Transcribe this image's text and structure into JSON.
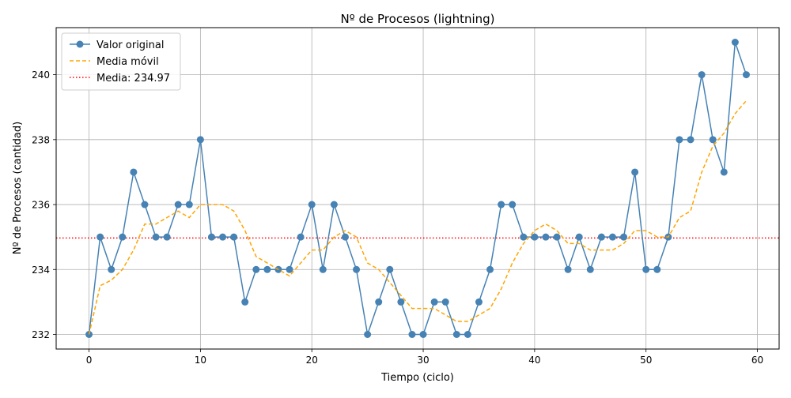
{
  "chart_data": {
    "type": "line",
    "title": "Nº de Procesos (lightning)",
    "xlabel": "Tiempo (ciclo)",
    "ylabel": "Nº de Procesos (cantidad)",
    "xlim": [
      -2.95,
      61.95
    ],
    "ylim": [
      231.55,
      241.45
    ],
    "xticks": [
      0,
      10,
      20,
      30,
      40,
      50,
      60
    ],
    "yticks": [
      232,
      234,
      236,
      238,
      240
    ],
    "grid": true,
    "legend_position": "top-left",
    "series": [
      {
        "name": "Valor original",
        "style": "line-markers",
        "color": "#4682b4",
        "x": [
          0,
          1,
          2,
          3,
          4,
          5,
          6,
          7,
          8,
          9,
          10,
          11,
          12,
          13,
          14,
          15,
          16,
          17,
          18,
          19,
          20,
          21,
          22,
          23,
          24,
          25,
          26,
          27,
          28,
          29,
          30,
          31,
          32,
          33,
          34,
          35,
          36,
          37,
          38,
          39,
          40,
          41,
          42,
          43,
          44,
          45,
          46,
          47,
          48,
          49,
          50,
          51,
          52,
          53,
          54,
          55,
          56,
          57,
          58,
          59
        ],
        "values": [
          232,
          235,
          234,
          235,
          237,
          236,
          235,
          235,
          236,
          236,
          238,
          235,
          235,
          235,
          233,
          234,
          234,
          234,
          234,
          235,
          236,
          234,
          236,
          235,
          234,
          232,
          233,
          234,
          233,
          232,
          232,
          233,
          233,
          232,
          232,
          233,
          234,
          236,
          236,
          235,
          235,
          235,
          235,
          234,
          235,
          234,
          235,
          235,
          235,
          237,
          234,
          234,
          235,
          238,
          238,
          240,
          238,
          237,
          241,
          240
        ]
      },
      {
        "name": "Media móvil",
        "style": "dashed",
        "color": "#ffa500",
        "x": [
          0,
          1,
          2,
          3,
          4,
          5,
          6,
          7,
          8,
          9,
          10,
          11,
          12,
          13,
          14,
          15,
          16,
          17,
          18,
          19,
          20,
          21,
          22,
          23,
          24,
          25,
          26,
          27,
          28,
          29,
          30,
          31,
          32,
          33,
          34,
          35,
          36,
          37,
          38,
          39,
          40,
          41,
          42,
          43,
          44,
          45,
          46,
          47,
          48,
          49,
          50,
          51,
          52,
          53,
          54,
          55,
          56,
          57,
          58,
          59
        ],
        "values": [
          232,
          233.5,
          233.67,
          234,
          234.6,
          235.4,
          235.4,
          235.6,
          235.8,
          235.6,
          236,
          236,
          236,
          235.8,
          235.2,
          234.4,
          234.2,
          234,
          233.8,
          234.2,
          234.6,
          234.6,
          235,
          235.2,
          235,
          234.2,
          234,
          233.6,
          233.2,
          232.8,
          232.8,
          232.8,
          232.6,
          232.4,
          232.4,
          232.6,
          232.8,
          233.4,
          234.2,
          234.8,
          235.2,
          235.4,
          235.2,
          234.8,
          234.8,
          234.6,
          234.6,
          234.6,
          234.8,
          235.2,
          235.2,
          235,
          235,
          235.6,
          235.8,
          237,
          237.8,
          238.2,
          238.8,
          239.2
        ]
      },
      {
        "name": "Media: 234.97",
        "style": "dotted-horizontal",
        "color": "#ff0000",
        "value": 234.97
      }
    ]
  }
}
